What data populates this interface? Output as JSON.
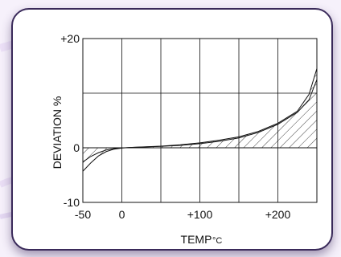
{
  "chart_data": {
    "type": "area",
    "xlabel": "TEMP",
    "xlabel_unit": "°C",
    "ylabel": "DEVIATION %",
    "xlim": [
      -50,
      250
    ],
    "ylim": [
      -10,
      20
    ],
    "x_tick_labels": [
      {
        "value": -50,
        "label": "-50"
      },
      {
        "value": 0,
        "label": "0"
      },
      {
        "value": 100,
        "label": "+100"
      },
      {
        "value": 200,
        "label": "+200"
      }
    ],
    "y_tick_labels": [
      {
        "value": 20,
        "label": "+20"
      },
      {
        "value": 0,
        "label": "0"
      },
      {
        "value": -10,
        "label": "-10"
      }
    ],
    "grid": true,
    "x_grid": [
      0,
      50,
      100,
      150,
      200
    ],
    "y_grid": [
      10
    ],
    "series": [
      {
        "x": [
          -50,
          -40,
          -30,
          -20,
          -10,
          0,
          10,
          25,
          50,
          75,
          100,
          125,
          150,
          175,
          200,
          225,
          240,
          250
        ],
        "y": [
          -4.3,
          -2.8,
          -1.5,
          -0.7,
          -0.25,
          -0.05,
          0.05,
          0.15,
          0.3,
          0.55,
          0.9,
          1.4,
          2.0,
          3.0,
          4.5,
          6.7,
          9.8,
          14.5
        ]
      },
      {
        "x": [
          -50,
          -40,
          -30,
          -20,
          -10,
          0,
          10,
          25,
          50,
          75,
          100,
          125,
          150,
          175,
          200,
          225,
          240,
          250
        ],
        "y": [
          -2.6,
          -1.6,
          -0.9,
          -0.4,
          -0.15,
          -0.02,
          0.05,
          0.12,
          0.25,
          0.45,
          0.75,
          1.2,
          1.8,
          2.8,
          4.3,
          6.5,
          8.8,
          12.5
        ]
      }
    ],
    "shading": "hatched area between the 0 line and the curve"
  },
  "colors": {
    "line": "#111111",
    "frame": "#3a2a5a",
    "background": "#f6f1fb"
  }
}
